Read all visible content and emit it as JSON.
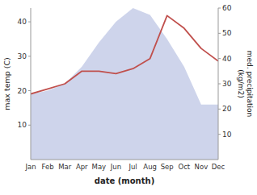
{
  "chart_data": {
    "type": "line",
    "categories": [
      "Jan",
      "Feb",
      "Mar",
      "Apr",
      "May",
      "Jun",
      "Jul",
      "Aug",
      "Sep",
      "Oct",
      "Nov",
      "Dec"
    ],
    "series": [
      {
        "type": "area",
        "color": "#c5cce8",
        "values": [
          19,
          20,
          22,
          27,
          34,
          40,
          44,
          42,
          35,
          27,
          16,
          16
        ]
      },
      {
        "type": "line",
        "color": "#c0504d",
        "axis": "y2",
        "values": [
          26,
          28,
          30,
          35,
          35,
          34,
          36,
          40,
          57,
          52,
          44,
          39
        ]
      }
    ],
    "x_label": "date (month)",
    "y_label": "max temp (C)",
    "y2_label": "med. precipitation\n(kg/m2)",
    "ylim": [
      0,
      44
    ],
    "yticks": [
      10,
      20,
      30,
      40
    ],
    "y2lim": [
      0,
      60
    ],
    "y2ticks": [
      10,
      20,
      30,
      40,
      50,
      60
    ],
    "grid": false
  }
}
